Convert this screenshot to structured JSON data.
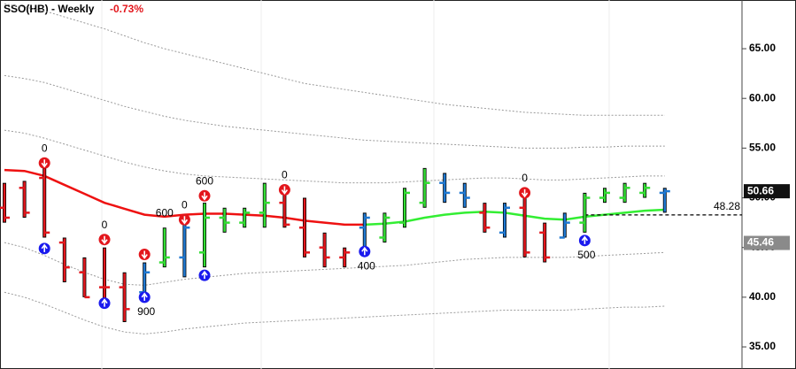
{
  "chart_data": {
    "type": "ohlc",
    "title": "SSO(HB) - Weekly",
    "change": "-0.73%",
    "open": [
      49,
      51,
      52,
      45.5,
      42.5,
      41,
      41,
      40.5,
      43.5,
      44,
      44.5,
      48,
      47.5,
      48.5,
      49.5,
      47,
      45,
      44,
      47,
      46,
      47.5,
      49.5,
      51.5,
      50.5,
      48.5,
      46.5,
      49,
      46.5,
      46,
      47.5,
      50,
      50,
      50.5,
      50.5
    ],
    "high": [
      51.5,
      51.7,
      53,
      46,
      44,
      45,
      42.5,
      43.5,
      47,
      48,
      49.5,
      49,
      49,
      51.5,
      51,
      50,
      46.5,
      45,
      48.5,
      48.5,
      51,
      53,
      52.5,
      51.5,
      49.5,
      49.5,
      50.5,
      47.5,
      48.5,
      50.5,
      51,
      51.5,
      51.5,
      51
    ],
    "low": [
      47.5,
      48,
      46,
      41.5,
      40,
      39.5,
      37.5,
      40,
      43,
      42,
      43,
      46.5,
      47,
      47,
      47,
      44,
      43,
      43,
      45,
      45.5,
      47,
      49,
      49.5,
      49,
      46.5,
      46,
      44,
      43.5,
      46,
      46.5,
      49.5,
      49.5,
      50,
      48.5
    ],
    "close": [
      48,
      48.5,
      46.5,
      43,
      40,
      41,
      38.8,
      42.5,
      44,
      47,
      48,
      47.5,
      48.5,
      49.5,
      47.3,
      44.5,
      44,
      44.5,
      48,
      48,
      50.5,
      51.5,
      50.5,
      50,
      47,
      49,
      44.5,
      44,
      47.5,
      50,
      50.5,
      51,
      51,
      50.66
    ],
    "bar_colors": [
      "#e3161c",
      "#e3161c",
      "#e3161c",
      "#e3161c",
      "#e3161c",
      "#e3161c",
      "#e3161c",
      "#1f78d1",
      "#33dd33",
      "#1f78d1",
      "#33dd33",
      "#33dd33",
      "#33dd33",
      "#33dd33",
      "#e3161c",
      "#e3161c",
      "#e3161c",
      "#e3161c",
      "#1f78d1",
      "#33dd33",
      "#33dd33",
      "#33dd33",
      "#1f78d1",
      "#1f78d1",
      "#e3161c",
      "#1f78d1",
      "#e3161c",
      "#e3161c",
      "#1f78d1",
      "#33dd33",
      "#33dd33",
      "#33dd33",
      "#33dd33",
      "#1f78d1"
    ],
    "series": [
      {
        "color": "#ee1111",
        "values": [
          52.8,
          52.7,
          52.2,
          51.3,
          50.4,
          49.5,
          48.9,
          48.3,
          48.1,
          48.3,
          48.4,
          48.4,
          48.3,
          48.2,
          48.0,
          47.7,
          47.5,
          47.3,
          47.3,
          null,
          null,
          null,
          null,
          null,
          null,
          null,
          null,
          null,
          null,
          null,
          null,
          null,
          null,
          null
        ]
      },
      {
        "color": "#33ee33",
        "values": [
          null,
          null,
          null,
          null,
          null,
          null,
          null,
          null,
          null,
          null,
          null,
          null,
          null,
          null,
          null,
          null,
          null,
          null,
          47.3,
          47.4,
          47.6,
          48.0,
          48.3,
          48.5,
          48.6,
          48.5,
          48.2,
          47.9,
          47.8,
          48.1,
          48.3,
          48.5,
          48.7,
          48.8
        ]
      }
    ],
    "envelope_color": "#9a9a9a",
    "envelopes": [
      [
        69.5,
        69.2,
        68.8,
        68.2,
        67.6,
        67.0,
        66.3,
        65.6,
        65.0,
        64.5,
        64.0,
        63.5,
        63.0,
        62.5,
        62.0,
        61.5,
        61.2,
        60.9,
        60.6,
        60.3,
        60.0,
        59.7,
        59.4,
        59.2,
        59.0,
        58.8,
        58.6,
        58.5,
        58.4,
        58.3,
        58.3,
        58.3,
        58.3,
        58.3
      ],
      [
        62.3,
        62.0,
        61.6,
        61.0,
        60.4,
        59.8,
        59.2,
        58.7,
        58.2,
        57.8,
        57.5,
        57.2,
        57.0,
        56.8,
        56.6,
        56.4,
        56.2,
        56.0,
        55.8,
        55.7,
        55.6,
        55.5,
        55.4,
        55.3,
        55.2,
        55.1,
        55.0,
        55.0,
        55.0,
        55.1,
        55.1,
        55.2,
        55.2,
        55.2
      ],
      [
        56.8,
        56.5,
        56.0,
        55.4,
        54.8,
        54.2,
        53.6,
        53.1,
        52.7,
        52.4,
        52.2,
        52.1,
        52.0,
        51.9,
        51.8,
        51.7,
        51.6,
        51.5,
        51.5,
        51.5,
        51.6,
        51.7,
        51.8,
        51.9,
        52.0,
        52.0,
        51.9,
        51.8,
        51.8,
        51.9,
        52.0,
        52.1,
        52.2,
        52.2
      ],
      [
        45.5,
        45.0,
        44.2,
        43.3,
        42.5,
        41.8,
        41.3,
        41.2,
        41.5,
        41.8,
        42.0,
        42.2,
        42.4,
        42.5,
        42.6,
        42.7,
        42.8,
        42.9,
        43.0,
        43.1,
        43.2,
        43.4,
        43.6,
        43.8,
        43.9,
        44.0,
        44.0,
        44.0,
        44.0,
        44.1,
        44.2,
        44.3,
        44.4,
        44.5
      ],
      [
        40.5,
        40.0,
        39.3,
        38.5,
        37.7,
        37.0,
        36.5,
        36.3,
        36.5,
        36.8,
        37.0,
        37.2,
        37.4,
        37.5,
        37.6,
        37.7,
        37.8,
        37.9,
        38.0,
        38.1,
        38.2,
        38.3,
        38.4,
        38.5,
        38.6,
        38.7,
        38.7,
        38.7,
        38.7,
        38.8,
        38.9,
        39.0,
        39.0,
        39.1
      ]
    ],
    "sell_signals": [
      null,
      null,
      53.5,
      null,
      null,
      45.8,
      null,
      44.3,
      null,
      47.8,
      50.2,
      null,
      null,
      null,
      50.8,
      null,
      null,
      null,
      null,
      null,
      null,
      null,
      null,
      null,
      null,
      null,
      50.5,
      null,
      null,
      null,
      null,
      null,
      null,
      null
    ],
    "sell_labels": [
      null,
      null,
      "0",
      null,
      null,
      "0",
      null,
      null,
      "600",
      "0",
      "600",
      null,
      null,
      null,
      "0",
      null,
      null,
      null,
      null,
      null,
      null,
      null,
      null,
      null,
      null,
      null,
      "0",
      null,
      null,
      null,
      null,
      null,
      null,
      null
    ],
    "buy_signals": [
      null,
      null,
      44.9,
      null,
      null,
      39.4,
      null,
      40.0,
      null,
      null,
      42.2,
      null,
      null,
      null,
      null,
      null,
      null,
      null,
      44.6,
      null,
      null,
      null,
      null,
      null,
      null,
      null,
      null,
      null,
      null,
      45.7,
      null,
      null,
      null,
      null
    ],
    "buy_labels": [
      null,
      null,
      null,
      null,
      null,
      null,
      null,
      "900",
      null,
      null,
      null,
      null,
      null,
      null,
      null,
      null,
      null,
      null,
      "400",
      null,
      null,
      null,
      null,
      null,
      null,
      null,
      null,
      null,
      null,
      "500",
      null,
      null,
      null,
      null
    ],
    "last_price": 50.66,
    "reference_price": 45.46,
    "level": 48.28,
    "ylim": [
      33.4,
      69.9
    ],
    "yticks": [
      {
        "value": 35,
        "label": "35.00"
      },
      {
        "value": 40,
        "label": "40.00"
      },
      {
        "value": 45,
        "label": "45.00"
      },
      {
        "value": 50,
        "label": "50.00"
      },
      {
        "value": 55,
        "label": "55.00"
      },
      {
        "value": 60,
        "label": "60.00"
      },
      {
        "value": 65,
        "label": "65.00"
      }
    ]
  }
}
